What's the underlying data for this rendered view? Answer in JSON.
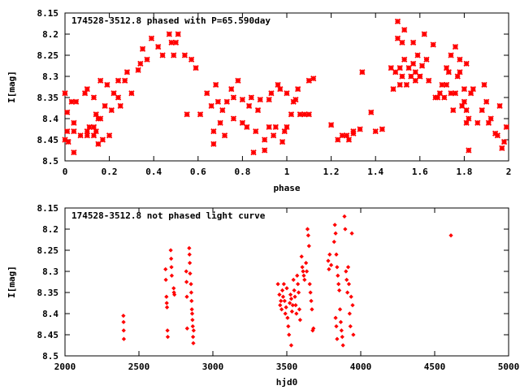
{
  "chart_data": [
    {
      "type": "scatter",
      "title": "174528-3512.8 phased with P=65.590day",
      "xlabel": "phase",
      "ylabel": "I[mag]",
      "xlim": [
        0,
        2
      ],
      "ylim": [
        8.5,
        8.15
      ],
      "y_inverted": true,
      "xticks": [
        "0",
        "0.2",
        "0.4",
        "0.6",
        "0.8",
        "1",
        "1.2",
        "1.4",
        "1.6",
        "1.8",
        "2"
      ],
      "xtick_values": [
        0,
        0.2,
        0.4,
        0.6,
        0.8,
        1,
        1.2,
        1.4,
        1.6,
        1.8,
        2
      ],
      "yticks": [
        "8.15",
        "8.2",
        "8.25",
        "8.3",
        "8.35",
        "8.4",
        "8.45",
        "8.5"
      ],
      "ytick_values": [
        8.15,
        8.2,
        8.25,
        8.3,
        8.35,
        8.4,
        8.45,
        8.5
      ],
      "marker_color": "#ff0000",
      "marker": "cross",
      "points": [
        [
          0.0,
          8.34
        ],
        [
          0.01,
          8.385
        ],
        [
          0.01,
          8.43
        ],
        [
          0.0,
          8.45
        ],
        [
          0.015,
          8.455
        ],
        [
          0.03,
          8.36
        ],
        [
          0.04,
          8.41
        ],
        [
          0.04,
          8.43
        ],
        [
          0.04,
          8.48
        ],
        [
          0.05,
          8.36
        ],
        [
          0.07,
          8.44
        ],
        [
          0.09,
          8.34
        ],
        [
          0.1,
          8.33
        ],
        [
          0.1,
          8.43
        ],
        [
          0.1,
          8.44
        ],
        [
          0.11,
          8.42
        ],
        [
          0.13,
          8.44
        ],
        [
          0.13,
          8.42
        ],
        [
          0.13,
          8.35
        ],
        [
          0.14,
          8.39
        ],
        [
          0.14,
          8.43
        ],
        [
          0.15,
          8.4
        ],
        [
          0.15,
          8.46
        ],
        [
          0.16,
          8.31
        ],
        [
          0.16,
          8.4
        ],
        [
          0.17,
          8.45
        ],
        [
          0.18,
          8.37
        ],
        [
          0.19,
          8.32
        ],
        [
          0.2,
          8.44
        ],
        [
          0.21,
          8.38
        ],
        [
          0.22,
          8.34
        ],
        [
          0.24,
          8.35
        ],
        [
          0.24,
          8.31
        ],
        [
          0.25,
          8.37
        ],
        [
          0.27,
          8.31
        ],
        [
          0.28,
          8.29
        ],
        [
          0.3,
          8.34
        ],
        [
          0.33,
          8.285
        ],
        [
          0.34,
          8.27
        ],
        [
          0.35,
          8.235
        ],
        [
          0.37,
          8.26
        ],
        [
          0.39,
          8.21
        ],
        [
          0.42,
          8.23
        ],
        [
          0.44,
          8.25
        ],
        [
          0.47,
          8.2
        ],
        [
          0.48,
          8.22
        ],
        [
          0.49,
          8.25
        ],
        [
          0.5,
          8.22
        ],
        [
          0.51,
          8.2
        ],
        [
          0.54,
          8.25
        ],
        [
          0.55,
          8.39
        ],
        [
          0.57,
          8.26
        ],
        [
          0.59,
          8.28
        ],
        [
          0.61,
          8.39
        ],
        [
          0.64,
          8.34
        ],
        [
          0.66,
          8.37
        ],
        [
          0.67,
          8.43
        ],
        [
          0.67,
          8.46
        ],
        [
          0.68,
          8.32
        ],
        [
          0.69,
          8.36
        ],
        [
          0.7,
          8.41
        ],
        [
          0.71,
          8.38
        ],
        [
          0.72,
          8.44
        ],
        [
          0.73,
          8.36
        ],
        [
          0.75,
          8.33
        ],
        [
          0.76,
          8.35
        ],
        [
          0.76,
          8.4
        ],
        [
          0.78,
          8.31
        ],
        [
          0.8,
          8.355
        ],
        [
          0.8,
          8.41
        ],
        [
          0.82,
          8.42
        ],
        [
          0.83,
          8.37
        ],
        [
          0.84,
          8.35
        ],
        [
          0.85,
          8.48
        ],
        [
          0.86,
          8.43
        ],
        [
          0.87,
          8.38
        ],
        [
          0.88,
          8.355
        ],
        [
          0.9,
          8.475
        ],
        [
          0.9,
          8.45
        ],
        [
          0.92,
          8.42
        ],
        [
          0.92,
          8.355
        ],
        [
          0.93,
          8.34
        ],
        [
          0.94,
          8.44
        ],
        [
          0.95,
          8.42
        ],
        [
          0.96,
          8.32
        ],
        [
          0.97,
          8.33
        ],
        [
          0.98,
          8.455
        ],
        [
          0.99,
          8.43
        ],
        [
          1.0,
          8.42
        ],
        [
          1.0,
          8.34
        ],
        [
          1.02,
          8.39
        ],
        [
          1.03,
          8.36
        ],
        [
          1.04,
          8.355
        ],
        [
          1.05,
          8.33
        ],
        [
          1.06,
          8.39
        ],
        [
          1.08,
          8.39
        ],
        [
          1.1,
          8.31
        ],
        [
          1.1,
          8.39
        ],
        [
          1.12,
          8.305
        ],
        [
          1.2,
          8.415
        ],
        [
          1.23,
          8.45
        ],
        [
          1.25,
          8.44
        ],
        [
          1.27,
          8.44
        ],
        [
          1.28,
          8.45
        ],
        [
          1.3,
          8.435
        ],
        [
          1.3,
          8.43
        ],
        [
          1.33,
          8.425
        ],
        [
          1.34,
          8.29
        ],
        [
          1.38,
          8.385
        ],
        [
          1.4,
          8.43
        ],
        [
          1.43,
          8.425
        ],
        [
          1.47,
          8.28
        ],
        [
          1.48,
          8.33
        ],
        [
          1.49,
          8.29
        ],
        [
          1.5,
          8.17
        ],
        [
          1.5,
          8.21
        ],
        [
          1.51,
          8.32
        ],
        [
          1.51,
          8.28
        ],
        [
          1.52,
          8.22
        ],
        [
          1.52,
          8.3
        ],
        [
          1.53,
          8.26
        ],
        [
          1.53,
          8.19
        ],
        [
          1.54,
          8.32
        ],
        [
          1.55,
          8.28
        ],
        [
          1.56,
          8.3
        ],
        [
          1.57,
          8.27
        ],
        [
          1.57,
          8.22
        ],
        [
          1.58,
          8.31
        ],
        [
          1.58,
          8.29
        ],
        [
          1.59,
          8.25
        ],
        [
          1.6,
          8.3
        ],
        [
          1.6,
          8.3
        ],
        [
          1.61,
          8.275
        ],
        [
          1.62,
          8.2
        ],
        [
          1.63,
          8.26
        ],
        [
          1.64,
          8.31
        ],
        [
          1.66,
          8.225
        ],
        [
          1.67,
          8.35
        ],
        [
          1.68,
          8.35
        ],
        [
          1.69,
          8.34
        ],
        [
          1.7,
          8.32
        ],
        [
          1.71,
          8.35
        ],
        [
          1.72,
          8.32
        ],
        [
          1.72,
          8.28
        ],
        [
          1.73,
          8.29
        ],
        [
          1.74,
          8.25
        ],
        [
          1.74,
          8.34
        ],
        [
          1.75,
          8.38
        ],
        [
          1.76,
          8.23
        ],
        [
          1.76,
          8.34
        ],
        [
          1.77,
          8.3
        ],
        [
          1.78,
          8.29
        ],
        [
          1.78,
          8.26
        ],
        [
          1.79,
          8.37
        ],
        [
          1.8,
          8.36
        ],
        [
          1.8,
          8.33
        ],
        [
          1.81,
          8.27
        ],
        [
          1.81,
          8.38
        ],
        [
          1.81,
          8.41
        ],
        [
          1.82,
          8.4
        ],
        [
          1.82,
          8.475
        ],
        [
          1.83,
          8.34
        ],
        [
          1.84,
          8.33
        ],
        [
          1.86,
          8.41
        ],
        [
          1.88,
          8.38
        ],
        [
          1.89,
          8.32
        ],
        [
          1.9,
          8.36
        ],
        [
          1.91,
          8.41
        ],
        [
          1.92,
          8.4
        ],
        [
          1.94,
          8.435
        ],
        [
          1.95,
          8.44
        ],
        [
          1.96,
          8.37
        ],
        [
          1.97,
          8.47
        ],
        [
          1.98,
          8.455
        ],
        [
          1.99,
          8.42
        ]
      ],
      "marker_size": "large"
    },
    {
      "type": "scatter",
      "title": "174528-3512.8 not phased light curve",
      "xlabel": "hjd0",
      "ylabel": "I[mag]",
      "xlim": [
        2000,
        5000
      ],
      "ylim": [
        8.5,
        8.15
      ],
      "y_inverted": true,
      "xticks": [
        "2000",
        "2500",
        "3000",
        "3500",
        "4000",
        "4500",
        "5000"
      ],
      "xtick_values": [
        2000,
        2500,
        3000,
        3500,
        4000,
        4500,
        5000
      ],
      "yticks": [
        "8.15",
        "8.2",
        "8.25",
        "8.3",
        "8.35",
        "8.4",
        "8.45",
        "8.5"
      ],
      "ytick_values": [
        8.15,
        8.2,
        8.25,
        8.3,
        8.35,
        8.4,
        8.45,
        8.5
      ],
      "marker_color": "#ff0000",
      "marker": "diamond",
      "points": [
        [
          2395,
          8.405
        ],
        [
          2396,
          8.42
        ],
        [
          2397,
          8.44
        ],
        [
          2398,
          8.46
        ],
        [
          2680,
          8.295
        ],
        [
          2682,
          8.32
        ],
        [
          2686,
          8.36
        ],
        [
          2688,
          8.375
        ],
        [
          2690,
          8.385
        ],
        [
          2693,
          8.44
        ],
        [
          2695,
          8.455
        ],
        [
          2715,
          8.25
        ],
        [
          2718,
          8.27
        ],
        [
          2720,
          8.29
        ],
        [
          2722,
          8.31
        ],
        [
          2735,
          8.34
        ],
        [
          2737,
          8.35
        ],
        [
          2740,
          8.355
        ],
        [
          2820,
          8.3
        ],
        [
          2822,
          8.325
        ],
        [
          2824,
          8.36
        ],
        [
          2826,
          8.435
        ],
        [
          2840,
          8.245
        ],
        [
          2842,
          8.26
        ],
        [
          2844,
          8.28
        ],
        [
          2846,
          8.305
        ],
        [
          2852,
          8.33
        ],
        [
          2854,
          8.35
        ],
        [
          2856,
          8.37
        ],
        [
          2858,
          8.39
        ],
        [
          2860,
          8.4
        ],
        [
          2862,
          8.415
        ],
        [
          2864,
          8.43
        ],
        [
          2866,
          8.455
        ],
        [
          2868,
          8.47
        ],
        [
          2870,
          8.44
        ],
        [
          3440,
          8.33
        ],
        [
          3450,
          8.355
        ],
        [
          3455,
          8.38
        ],
        [
          3460,
          8.37
        ],
        [
          3465,
          8.39
        ],
        [
          3470,
          8.345
        ],
        [
          3475,
          8.36
        ],
        [
          3480,
          8.33
        ],
        [
          3485,
          8.37
        ],
        [
          3490,
          8.4
        ],
        [
          3495,
          8.385
        ],
        [
          3500,
          8.34
        ],
        [
          3505,
          8.41
        ],
        [
          3510,
          8.43
        ],
        [
          3515,
          8.45
        ],
        [
          3520,
          8.375
        ],
        [
          3525,
          8.355
        ],
        [
          3530,
          8.365
        ],
        [
          3535,
          8.395
        ],
        [
          3540,
          8.38
        ],
        [
          3545,
          8.32
        ],
        [
          3550,
          8.345
        ],
        [
          3555,
          8.36
        ],
        [
          3560,
          8.38
        ],
        [
          3565,
          8.4
        ],
        [
          3570,
          8.31
        ],
        [
          3575,
          8.33
        ],
        [
          3580,
          8.35
        ],
        [
          3585,
          8.39
        ],
        [
          3590,
          8.415
        ],
        [
          3530,
          8.475
        ],
        [
          3600,
          8.265
        ],
        [
          3605,
          8.29
        ],
        [
          3610,
          8.3
        ],
        [
          3615,
          8.31
        ],
        [
          3620,
          8.32
        ],
        [
          3630,
          8.28
        ],
        [
          3635,
          8.3
        ],
        [
          3640,
          8.2
        ],
        [
          3645,
          8.215
        ],
        [
          3650,
          8.24
        ],
        [
          3655,
          8.33
        ],
        [
          3660,
          8.35
        ],
        [
          3665,
          8.37
        ],
        [
          3670,
          8.39
        ],
        [
          3675,
          8.44
        ],
        [
          3680,
          8.435
        ],
        [
          3780,
          8.275
        ],
        [
          3785,
          8.295
        ],
        [
          3790,
          8.26
        ],
        [
          3800,
          8.285
        ],
        [
          3820,
          8.23
        ],
        [
          3825,
          8.19
        ],
        [
          3830,
          8.21
        ],
        [
          3835,
          8.26
        ],
        [
          3840,
          8.29
        ],
        [
          3845,
          8.31
        ],
        [
          3850,
          8.33
        ],
        [
          3855,
          8.345
        ],
        [
          3860,
          8.39
        ],
        [
          3865,
          8.42
        ],
        [
          3870,
          8.44
        ],
        [
          3875,
          8.455
        ],
        [
          3880,
          8.475
        ],
        [
          3830,
          8.41
        ],
        [
          3835,
          8.43
        ],
        [
          3840,
          8.46
        ],
        [
          3890,
          8.17
        ],
        [
          3895,
          8.2
        ],
        [
          3900,
          8.3
        ],
        [
          3905,
          8.32
        ],
        [
          3910,
          8.35
        ],
        [
          3915,
          8.29
        ],
        [
          3920,
          8.33
        ],
        [
          3925,
          8.4
        ],
        [
          3930,
          8.43
        ],
        [
          3935,
          8.36
        ],
        [
          3940,
          8.21
        ],
        [
          3945,
          8.38
        ],
        [
          3950,
          8.45
        ],
        [
          4610,
          8.215
        ]
      ],
      "marker_size": "small"
    }
  ]
}
